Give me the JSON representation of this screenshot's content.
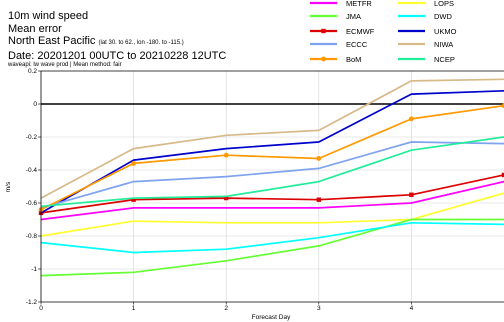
{
  "header": {
    "line1": "10m wind speed",
    "line2": "Mean error",
    "region": "North East Pacific",
    "region_detail": "(lat 30. to 62., lon -180. to -115.)",
    "date": "Date: 20201201 00UTC to 20210228 12UTC",
    "method": "waveapi: lw wave prod | Mean method: fair"
  },
  "chart_data": {
    "type": "line",
    "title": "",
    "xlabel": "Forecast Day",
    "ylabel": "m/s",
    "x": [
      0,
      1,
      2,
      3,
      4,
      5
    ],
    "xlim": [
      0,
      5
    ],
    "ylim": [
      -1.2,
      0.2
    ],
    "xticks": [
      "0",
      "1",
      "2",
      "3",
      "4"
    ],
    "yticks": [
      "0.2",
      "0",
      "-0.2",
      "-0.4",
      "-0.6",
      "-0.8",
      "-1",
      "-1.2"
    ],
    "grid": true,
    "zero_line": true,
    "legend_position": "top-right",
    "series": [
      {
        "name": "METFR",
        "color": "#ff00ff",
        "marker": "none",
        "values": [
          -0.7,
          -0.63,
          -0.63,
          -0.63,
          -0.6,
          -0.47
        ]
      },
      {
        "name": "LOPS",
        "color": "#ffff33",
        "marker": "none",
        "values": [
          -0.8,
          -0.71,
          -0.72,
          -0.72,
          -0.7,
          -0.54
        ]
      },
      {
        "name": "JMA",
        "color": "#66ff33",
        "marker": "none",
        "values": [
          -1.04,
          -1.02,
          -0.95,
          -0.86,
          -0.7,
          -0.7
        ]
      },
      {
        "name": "DWD",
        "color": "#00ffff",
        "marker": "none",
        "values": [
          -0.84,
          -0.9,
          -0.88,
          -0.81,
          -0.72,
          -0.73
        ]
      },
      {
        "name": "ECMWF",
        "color": "#dd0000",
        "marker": "square",
        "values": [
          -0.66,
          -0.58,
          -0.57,
          -0.58,
          -0.55,
          -0.43
        ]
      },
      {
        "name": "UKMO",
        "color": "#0000cc",
        "marker": "none",
        "values": [
          -0.66,
          -0.34,
          -0.27,
          -0.23,
          0.06,
          0.08
        ]
      },
      {
        "name": "ECCC",
        "color": "#7fa3ee",
        "marker": "none",
        "values": [
          -0.63,
          -0.47,
          -0.44,
          -0.39,
          -0.23,
          -0.24
        ]
      },
      {
        "name": "NIWA",
        "color": "#d7b98a",
        "marker": "none",
        "values": [
          -0.57,
          -0.27,
          -0.19,
          -0.16,
          0.14,
          0.15
        ]
      },
      {
        "name": "BoM",
        "color": "#ff9900",
        "marker": "circle",
        "values": [
          -0.64,
          -0.36,
          -0.31,
          -0.33,
          -0.09,
          -0.01
        ]
      },
      {
        "name": "NCEP",
        "color": "#22ee99",
        "marker": "none",
        "values": [
          -0.62,
          -0.57,
          -0.56,
          -0.47,
          -0.28,
          -0.2
        ]
      }
    ]
  }
}
